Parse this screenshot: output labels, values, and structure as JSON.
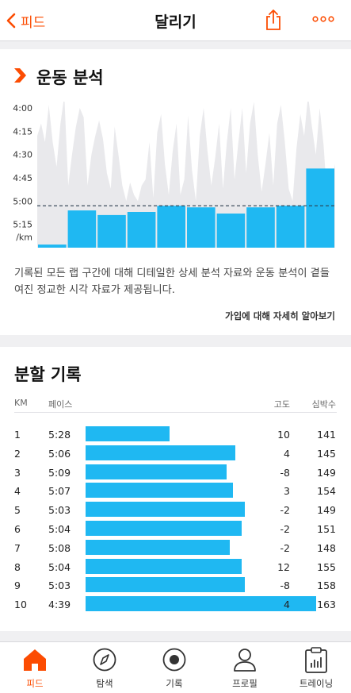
{
  "header": {
    "back_label": "피드",
    "title": "달리기",
    "icons": {
      "back": "chevron-left-icon",
      "share": "share-icon",
      "more": "more-dots-icon"
    }
  },
  "analysis": {
    "title": "운동 분석",
    "description": "기록된 모든 랩 구간에 대해 디테일한 상세 분석 자료와 운동 분석이 곁들여진 정교한 시각 자료가 제공됩니다.",
    "learn_more": "가입에 대해 자세히 알아보기"
  },
  "chart_data": {
    "type": "bar",
    "y_ticks": [
      "4:00",
      "4:15",
      "4:30",
      "4:45",
      "5:00",
      "5:15"
    ],
    "y_unit": "/km",
    "ylim_seconds": [
      240,
      330
    ],
    "reversed_y": true,
    "average_pace_seconds": 303,
    "series": [
      {
        "values_seconds": [
          328,
          306,
          309,
          307,
          303,
          304,
          308,
          304,
          303,
          279
        ]
      }
    ],
    "background_profile": [
      258,
      250,
      262,
      238,
      262,
      278,
      250,
      232,
      290,
      270,
      252,
      240,
      246,
      290,
      270,
      258,
      248,
      260,
      282,
      292,
      252,
      270,
      290,
      300,
      288,
      296,
      300,
      290,
      286,
      262,
      298,
      256,
      244,
      276,
      296,
      268,
      250,
      296,
      286,
      245,
      280,
      300,
      258,
      240,
      268,
      290,
      272,
      250,
      292,
      262,
      240,
      286,
      262,
      240,
      282,
      250,
      236,
      270,
      294,
      276,
      256,
      290,
      250,
      238,
      262,
      292,
      300,
      266,
      244,
      258,
      232,
      252,
      270,
      240,
      264,
      300,
      292,
      276
    ],
    "colors": {
      "bar": "#1fb8f2",
      "background": "#e9e9ec",
      "average_line": "#2b3e4e"
    }
  },
  "splits": {
    "title": "분할 기록",
    "headers": {
      "km": "KM",
      "pace": "페이스",
      "elev": "고도",
      "hr": "심박수"
    },
    "rows": [
      {
        "km": "1",
        "pace": "5:28",
        "pace_seconds": 328,
        "elev": "10",
        "hr": "141"
      },
      {
        "km": "2",
        "pace": "5:06",
        "pace_seconds": 306,
        "elev": "4",
        "hr": "145"
      },
      {
        "km": "3",
        "pace": "5:09",
        "pace_seconds": 309,
        "elev": "-8",
        "hr": "149"
      },
      {
        "km": "4",
        "pace": "5:07",
        "pace_seconds": 307,
        "elev": "3",
        "hr": "154"
      },
      {
        "km": "5",
        "pace": "5:03",
        "pace_seconds": 303,
        "elev": "-2",
        "hr": "149"
      },
      {
        "km": "6",
        "pace": "5:04",
        "pace_seconds": 304,
        "elev": "-2",
        "hr": "151"
      },
      {
        "km": "7",
        "pace": "5:08",
        "pace_seconds": 308,
        "elev": "-2",
        "hr": "148"
      },
      {
        "km": "8",
        "pace": "5:04",
        "pace_seconds": 304,
        "elev": "12",
        "hr": "155"
      },
      {
        "km": "9",
        "pace": "5:03",
        "pace_seconds": 303,
        "elev": "-8",
        "hr": "158"
      },
      {
        "km": "10",
        "pace": "4:39",
        "pace_seconds": 279,
        "elev": "4",
        "hr": "163"
      }
    ]
  },
  "nav": {
    "items": [
      {
        "label": "피드",
        "icon": "home-icon",
        "active": true
      },
      {
        "label": "탐색",
        "icon": "compass-icon",
        "active": false
      },
      {
        "label": "기록",
        "icon": "record-icon",
        "active": false
      },
      {
        "label": "프로필",
        "icon": "profile-icon",
        "active": false
      },
      {
        "label": "트레이닝",
        "icon": "training-clipboard-icon",
        "active": false
      }
    ]
  },
  "colors": {
    "accent": "#fc4c02",
    "bar": "#1fb8f2"
  }
}
